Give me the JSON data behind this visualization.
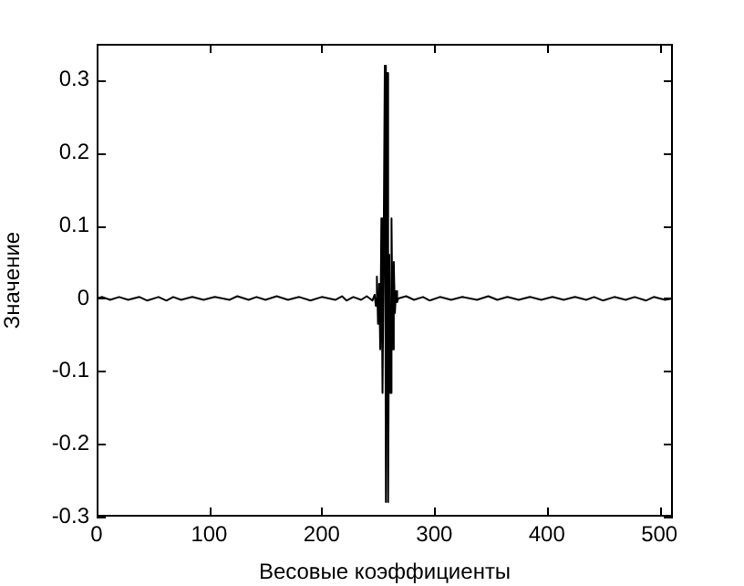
{
  "chart_data": {
    "type": "line",
    "xlabel": "Весовые коэффициенты",
    "ylabel": "Значение",
    "xlim": [
      0,
      512
    ],
    "ylim": [
      -0.3,
      0.35
    ],
    "xticks": [
      0,
      100,
      200,
      300,
      400,
      500
    ],
    "yticks": [
      -0.3,
      -0.2,
      -0.1,
      0,
      0.1,
      0.2,
      0.3
    ],
    "grid": false,
    "legend": false,
    "marker": "none",
    "line_style": "solid",
    "series": [
      {
        "color": "#000000",
        "x": [
          0,
          5,
          12,
          20,
          28,
          38,
          45,
          55,
          62,
          68,
          75,
          85,
          95,
          105,
          118,
          125,
          135,
          142,
          150,
          160,
          170,
          180,
          190,
          200,
          212,
          218,
          222,
          228,
          235,
          240,
          245,
          247,
          248,
          249,
          250,
          251,
          252,
          253,
          254,
          255,
          256,
          257,
          258,
          259,
          260,
          261,
          262,
          263,
          264,
          265,
          266,
          267,
          268,
          275,
          282,
          290,
          296,
          305,
          315,
          325,
          338,
          348,
          356,
          365,
          375,
          385,
          395,
          405,
          415,
          425,
          435,
          442,
          450,
          460,
          470,
          478,
          488,
          495,
          505,
          512
        ],
        "values": [
          0,
          0.002,
          -0.002,
          0.002,
          -0.002,
          0.002,
          -0.003,
          0.002,
          -0.003,
          0.002,
          -0.002,
          0.002,
          -0.002,
          0.002,
          -0.002,
          0.003,
          -0.002,
          0.002,
          -0.002,
          0.003,
          -0.002,
          0.002,
          -0.003,
          0.002,
          -0.002,
          0.003,
          -0.003,
          0.002,
          -0.002,
          0.003,
          -0.003,
          0.005,
          -0.01,
          0.03,
          -0.035,
          0.02,
          -0.07,
          0.11,
          -0.13,
          0.06,
          0.32,
          -0.28,
          0.31,
          -0.28,
          0.06,
          -0.13,
          0.11,
          -0.07,
          0.05,
          -0.02,
          0.01,
          -0.005,
          0,
          0.003,
          -0.002,
          0.002,
          -0.003,
          0.002,
          -0.002,
          0.002,
          -0.002,
          0.003,
          -0.002,
          0.002,
          -0.002,
          0.002,
          -0.002,
          0.002,
          -0.002,
          0.002,
          -0.002,
          0.002,
          -0.003,
          0.002,
          -0.002,
          0.002,
          -0.003,
          0.002,
          -0.002,
          0
        ]
      }
    ]
  }
}
